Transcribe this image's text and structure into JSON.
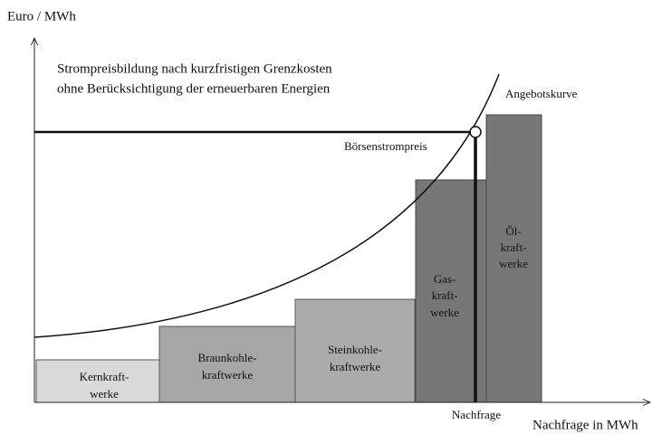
{
  "axes": {
    "y_label": "Euro / MWh",
    "x_label": "Nachfrage in MWh"
  },
  "title": [
    "Strompreisbildung nach kurzfristigen Grenzkosten",
    "ohne Berücksichtigung der erneuerbaren Energien"
  ],
  "curve_label": "Angebotskurve",
  "price_label": "Börsenstrompreis",
  "demand_label": "Nachfrage",
  "plants": [
    {
      "lines": [
        "Kernkraft-",
        "werke"
      ]
    },
    {
      "lines": [
        "Braunkohle-",
        "kraftwerke"
      ]
    },
    {
      "lines": [
        "Steinkohle-",
        "kraftwerke"
      ]
    },
    {
      "lines": [
        "Gas-",
        "kraft-",
        "werke"
      ]
    },
    {
      "lines": [
        "Öl-",
        "kraft-",
        "werke"
      ]
    }
  ]
}
